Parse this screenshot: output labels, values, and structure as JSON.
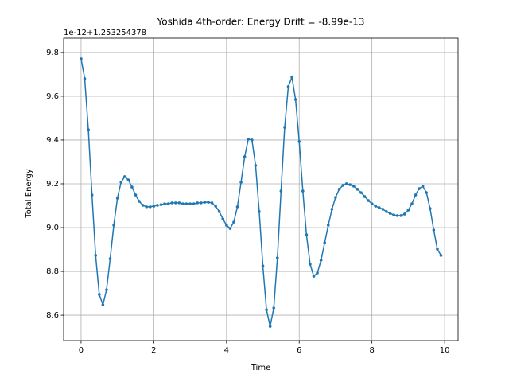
{
  "chart_data": {
    "type": "line",
    "title": "Yoshida 4th-order: Energy Drift = -8.99e-13",
    "x_label": "Time",
    "y_label": "Total Energy",
    "offset_text": "1e-12+1.253254378",
    "x": [
      0,
      0.1,
      0.2,
      0.3,
      0.4,
      0.5,
      0.6,
      0.7,
      0.8,
      0.9,
      1,
      1.1,
      1.2,
      1.3,
      1.4,
      1.5,
      1.6,
      1.7,
      1.8,
      1.9,
      2,
      2.1,
      2.2,
      2.3,
      2.4,
      2.5,
      2.6,
      2.7,
      2.8,
      2.9,
      3,
      3.1,
      3.2,
      3.3,
      3.4,
      3.5,
      3.6,
      3.7,
      3.8,
      3.9,
      4,
      4.1,
      4.2,
      4.3,
      4.4,
      4.5,
      4.6,
      4.7,
      4.8,
      4.9,
      5,
      5.1,
      5.2,
      5.3,
      5.4,
      5.5,
      5.6,
      5.7,
      5.8,
      5.9,
      6,
      6.1,
      6.2,
      6.3,
      6.4,
      6.5,
      6.6,
      6.7,
      6.8,
      6.9,
      7,
      7.1,
      7.2,
      7.3,
      7.4,
      7.5,
      7.6,
      7.7,
      7.8,
      7.9,
      8,
      8.1,
      8.2,
      8.3,
      8.4,
      8.5,
      8.6,
      8.7,
      8.8,
      8.9,
      9,
      9.1,
      9.2,
      9.3,
      9.4,
      9.5,
      9.6,
      9.7,
      9.8,
      9.9
    ],
    "series": [
      {
        "name": "Total Energy",
        "color": "#1f77b4",
        "values": [
          9.771,
          9.68,
          9.447,
          9.149,
          8.873,
          8.695,
          8.647,
          8.716,
          8.858,
          9.011,
          9.135,
          9.207,
          9.233,
          9.218,
          9.185,
          9.149,
          9.12,
          9.102,
          9.095,
          9.095,
          9.098,
          9.102,
          9.105,
          9.109,
          9.109,
          9.113,
          9.113,
          9.113,
          9.109,
          9.109,
          9.109,
          9.109,
          9.113,
          9.113,
          9.116,
          9.116,
          9.113,
          9.098,
          9.073,
          9.04,
          9.011,
          8.996,
          9.025,
          9.095,
          9.207,
          9.324,
          9.404,
          9.4,
          9.284,
          9.073,
          8.825,
          8.625,
          8.549,
          8.633,
          8.862,
          9.167,
          9.458,
          9.644,
          9.687,
          9.585,
          9.393,
          9.167,
          8.967,
          8.833,
          8.778,
          8.793,
          8.851,
          8.931,
          9.011,
          9.084,
          9.138,
          9.175,
          9.193,
          9.2,
          9.196,
          9.189,
          9.175,
          9.16,
          9.142,
          9.124,
          9.109,
          9.098,
          9.091,
          9.084,
          9.073,
          9.065,
          9.058,
          9.055,
          9.055,
          9.062,
          9.08,
          9.109,
          9.149,
          9.178,
          9.189,
          9.16,
          9.087,
          8.989,
          8.902,
          8.873
        ]
      }
    ],
    "xlim": [
      -0.48,
      10.37
    ],
    "ylim": [
      8.484,
      9.865
    ],
    "xticks": [
      0,
      2,
      4,
      6,
      8,
      10
    ],
    "yticks": [
      8.6,
      8.8,
      {
        "value": 9,
        "label": "9.0"
      },
      9.2,
      9.4,
      9.6,
      9.8
    ],
    "grid": true
  }
}
